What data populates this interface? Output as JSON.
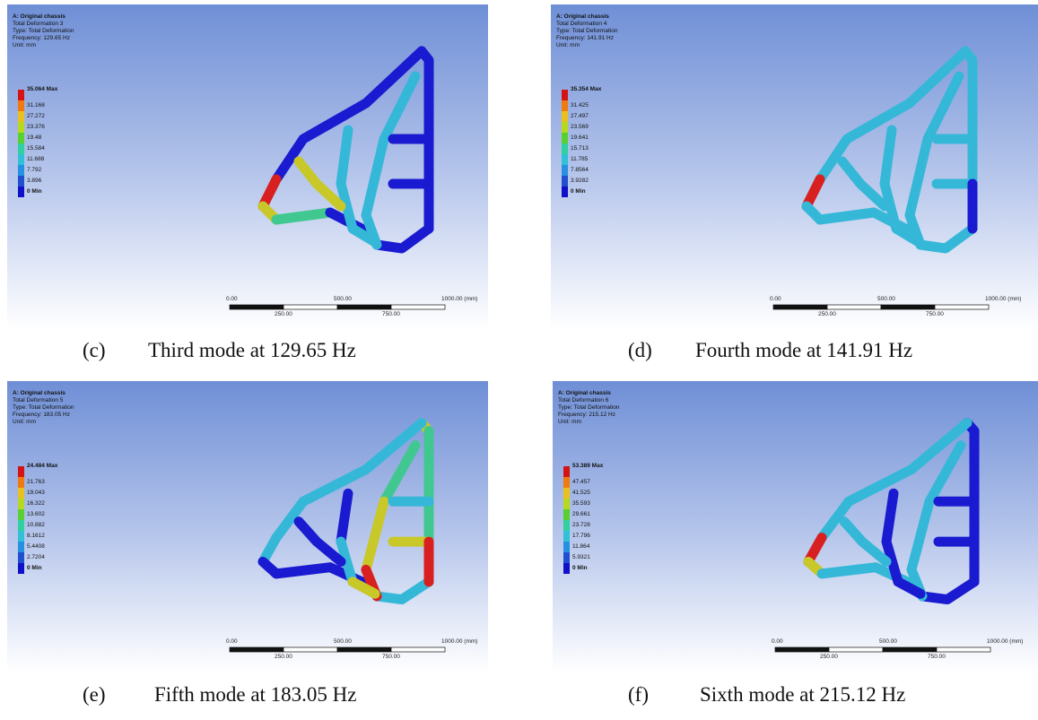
{
  "panels": [
    {
      "label": "(c)",
      "caption": "Third mode at 129.65 Hz",
      "header": [
        "A: Original chassis",
        "Total Deformation 3",
        "Type: Total Deformation",
        "Frequency: 129.65 Hz",
        "Unit: mm"
      ],
      "legend": [
        "35.064 Max",
        "31.168",
        "27.272",
        "23.376",
        "19.48",
        "15.584",
        "11.688",
        "7.792",
        "3.896",
        "0 Min"
      ],
      "scale_top": [
        "0.00",
        "500.00",
        "1000.00 (mm)"
      ],
      "scale_bottom": [
        "250.00",
        "750.00"
      ]
    },
    {
      "label": "(d)",
      "caption": "Fourth mode at 141.91 Hz",
      "header": [
        "A: Original chassis",
        "Total Deformation 4",
        "Type: Total Deformation",
        "Frequency: 141.91 Hz",
        "Unit: mm"
      ],
      "legend": [
        "35.354 Max",
        "31.425",
        "27.497",
        "23.569",
        "19.641",
        "15.713",
        "11.785",
        "7.8564",
        "3.9282",
        "0 Min"
      ],
      "scale_top": [
        "0.00",
        "500.00",
        "1000.00 (mm)"
      ],
      "scale_bottom": [
        "250.00",
        "750.00"
      ]
    },
    {
      "label": "(e)",
      "caption": "Fifth mode at 183.05 Hz",
      "header": [
        "A: Original chassis",
        "Total Deformation 5",
        "Type: Total Deformation",
        "Frequency: 183.05 Hz",
        "Unit: mm"
      ],
      "legend": [
        "24.484 Max",
        "21.763",
        "19.043",
        "16.322",
        "13.602",
        "10.882",
        "8.1612",
        "5.4408",
        "2.7204",
        "0 Min"
      ],
      "scale_top": [
        "0.00",
        "500.00",
        "1000.00 (mm)"
      ],
      "scale_bottom": [
        "250.00",
        "750.00"
      ]
    },
    {
      "label": "(f)",
      "caption": "Sixth mode at 215.12 Hz",
      "header": [
        "A: Original chassis",
        "Total Deformation 6",
        "Type: Total Deformation",
        "Frequency: 215.12 Hz",
        "Unit: mm"
      ],
      "legend": [
        "53.389 Max",
        "47.457",
        "41.525",
        "35.593",
        "29.661",
        "23.728",
        "17.796",
        "11.864",
        "5.9321",
        "0 Min"
      ],
      "scale_top": [
        "0.00",
        "500.00",
        "1000.00 (mm)"
      ],
      "scale_bottom": [
        "250.00",
        "750.00"
      ]
    }
  ]
}
